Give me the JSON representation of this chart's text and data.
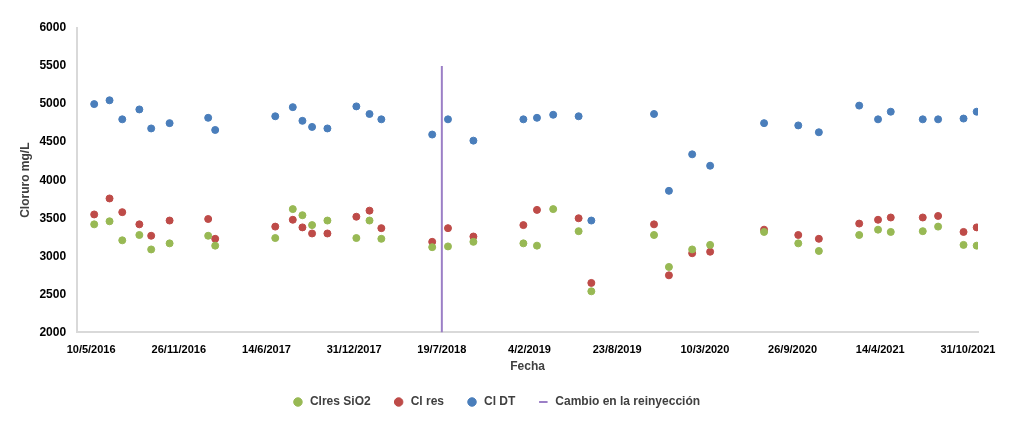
{
  "chart_data": {
    "type": "scatter",
    "xlabel": "Fecha",
    "ylabel": "Cloruro mg/L",
    "x": [
      "2016-05-17",
      "2016-06-21",
      "2016-07-20",
      "2016-08-28",
      "2016-09-24",
      "2016-11-05",
      "2017-02-01",
      "2017-02-17",
      "2017-07-04",
      "2017-08-13",
      "2017-09-04",
      "2017-09-26",
      "2017-10-31",
      "2018-01-05",
      "2018-02-04",
      "2018-03-03",
      "2018-06-27",
      "2018-08-02",
      "2018-09-29",
      "2019-01-21",
      "2019-02-21",
      "2019-03-30",
      "2019-05-27",
      "2019-06-25",
      "2019-11-15",
      "2019-12-19",
      "2020-02-10",
      "2020-03-22",
      "2020-07-23",
      "2020-10-09",
      "2020-11-25",
      "2021-02-25",
      "2021-04-09",
      "2021-05-08",
      "2021-07-20",
      "2021-08-24",
      "2021-10-21",
      "2021-11-20"
    ],
    "series": [
      {
        "name": "Cambio en la reinyección",
        "type": "line",
        "color": "#9b7fc6",
        "x": [
          "2018-07-19",
          "2018-07-19"
        ],
        "values": [
          2000,
          5500
        ],
        "marker": "none"
      },
      {
        "name": "Cl DT",
        "color": "#4a7ebb",
        "values": [
          5000,
          5050,
          4800,
          4930,
          4680,
          4750,
          4820,
          4660,
          4840,
          4960,
          4780,
          4700,
          4680,
          4970,
          4870,
          4800,
          4600,
          4800,
          4520,
          4800,
          4820,
          4860,
          4840,
          3470,
          4870,
          3860,
          4340,
          4190,
          4750,
          4720,
          4630,
          4980,
          4800,
          4900,
          4800,
          4800,
          4810,
          4900
        ]
      },
      {
        "name": "Cl res",
        "color": "#be4b48",
        "values": [
          3550,
          3760,
          3580,
          3420,
          3270,
          3470,
          3490,
          3230,
          3390,
          3480,
          3380,
          3300,
          3300,
          3520,
          3600,
          3370,
          3190,
          3370,
          3260,
          3410,
          3610,
          null,
          3500,
          2650,
          3420,
          2750,
          3040,
          3060,
          3350,
          3280,
          3230,
          3430,
          3480,
          3510,
          3510,
          3530,
          3320,
          3380
        ]
      },
      {
        "name": "Clres SiO2",
        "color": "#98b954",
        "values": [
          3420,
          3460,
          3210,
          3280,
          3090,
          3170,
          3270,
          3140,
          3240,
          3620,
          3540,
          3410,
          3470,
          3240,
          3470,
          3230,
          3120,
          3130,
          3190,
          3170,
          3140,
          3620,
          3330,
          2540,
          3280,
          2860,
          3090,
          3150,
          3320,
          3170,
          3070,
          3280,
          3350,
          3320,
          3330,
          3390,
          3150,
          3140
        ]
      }
    ],
    "xlim": [
      "2016-04-08",
      "2021-11-23"
    ],
    "xticks": [
      {
        "value": "2016-05-10",
        "label": "10/5/2016"
      },
      {
        "value": "2016-11-26",
        "label": "26/11/2016"
      },
      {
        "value": "2017-06-14",
        "label": "14/6/2017"
      },
      {
        "value": "2017-12-31",
        "label": "31/12/2017"
      },
      {
        "value": "2018-07-19",
        "label": "19/7/2018"
      },
      {
        "value": "2019-02-04",
        "label": "4/2/2019"
      },
      {
        "value": "2019-08-23",
        "label": "23/8/2019"
      },
      {
        "value": "2020-03-10",
        "label": "10/3/2020"
      },
      {
        "value": "2020-09-26",
        "label": "26/9/2020"
      },
      {
        "value": "2021-04-14",
        "label": "14/4/2021"
      },
      {
        "value": "2021-10-31",
        "label": "31/10/2021"
      }
    ],
    "ylim": [
      2000,
      6000
    ],
    "yticks": [
      2000,
      2500,
      3000,
      3500,
      4000,
      4500,
      5000,
      5500,
      6000
    ],
    "grid": false,
    "legend": "bottom",
    "marker": "circle"
  }
}
